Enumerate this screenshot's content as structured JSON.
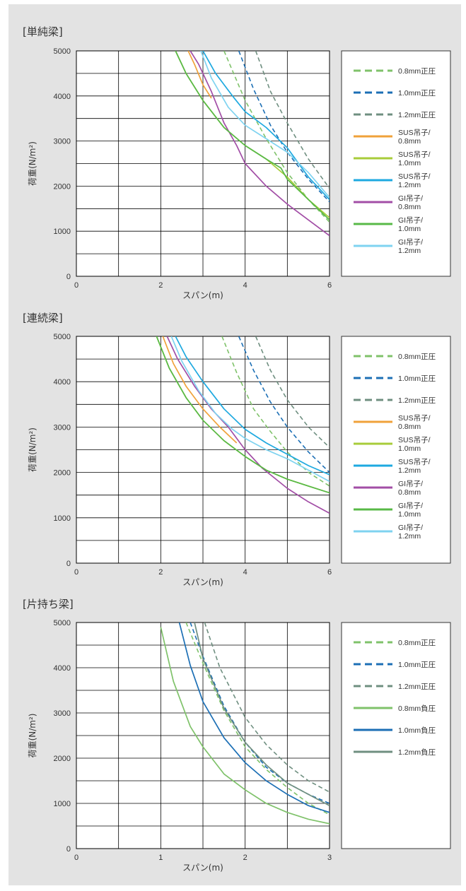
{
  "chart_data": [
    {
      "type": "line",
      "title": "[単純梁]",
      "xlabel": "スパン(m)",
      "ylabel": "荷重(N/m²)",
      "xlim": [
        0,
        6
      ],
      "ylim": [
        0,
        5000
      ],
      "xticks": [
        0,
        2,
        4,
        6
      ],
      "yticks": [
        0,
        1000,
        2000,
        3000,
        4000,
        5000
      ],
      "x_grid_step": 1,
      "y_grid_step": 500,
      "legend_position": "right",
      "series": [
        {
          "name": "0.8mm正圧",
          "color": "#7fc26a",
          "dash": true,
          "x": [
            3.5,
            4.0,
            4.5,
            5.0,
            5.5,
            6.0
          ],
          "y": [
            5000,
            3900,
            3050,
            2300,
            1700,
            1200
          ]
        },
        {
          "name": "1.0mm正圧",
          "color": "#1c6fb5",
          "dash": true,
          "x": [
            3.85,
            4.2,
            4.6,
            5.0,
            5.5,
            6.0
          ],
          "y": [
            5000,
            4150,
            3350,
            2750,
            2150,
            1650
          ]
        },
        {
          "name": "1.2mm正圧",
          "color": "#6f8f80",
          "dash": true,
          "x": [
            4.25,
            4.6,
            5.0,
            5.5,
            6.0
          ],
          "y": [
            5000,
            4100,
            3400,
            2600,
            1950
          ]
        },
        {
          "name": "SUS吊子/0.8mm",
          "color": "#f0a23a",
          "dash": false,
          "x": [
            2.65,
            2.8,
            3.0,
            3.2
          ],
          "y": [
            5000,
            4700,
            4250,
            3950
          ]
        },
        {
          "name": "SUS吊子/1.0mm",
          "color": "#a8cc3a",
          "dash": false,
          "x": [
            2.35,
            2.6,
            3.0,
            3.5,
            4.0,
            4.5,
            5.0,
            5.5,
            6.0
          ],
          "y": [
            5000,
            4500,
            3900,
            3300,
            2900,
            2600,
            2200,
            1700,
            1300
          ]
        },
        {
          "name": "SUS吊子/1.2mm",
          "color": "#1ea9e0",
          "dash": false,
          "x": [
            3.0,
            3.3,
            3.7,
            4.0,
            4.5,
            5.0,
            5.5,
            6.0
          ],
          "y": [
            5000,
            4500,
            4000,
            3650,
            3300,
            2850,
            2200,
            1700
          ]
        },
        {
          "name": "GI吊子/0.8mm",
          "color": "#a24ea6",
          "dash": false,
          "x": [
            2.7,
            2.9,
            3.2,
            3.5,
            3.8,
            4.0,
            4.5,
            5.0,
            5.5,
            6.0
          ],
          "y": [
            5000,
            4700,
            4100,
            3400,
            2900,
            2500,
            2000,
            1600,
            1250,
            900
          ]
        },
        {
          "name": "GI吊子/1.0mm",
          "color": "#58b947",
          "dash": false,
          "x": [
            2.35,
            2.6,
            3.0,
            3.5,
            4.0,
            4.5,
            4.85,
            5.0,
            5.5,
            6.0
          ],
          "y": [
            5000,
            4500,
            3900,
            3300,
            2900,
            2600,
            2400,
            2150,
            1700,
            1250
          ]
        },
        {
          "name": "GI吊子/1.2mm",
          "color": "#7fd3f0",
          "dash": false,
          "x": [
            2.95,
            3.2,
            3.6,
            4.0,
            4.5,
            5.0,
            5.5,
            6.0
          ],
          "y": [
            5000,
            4400,
            3750,
            3350,
            3050,
            2750,
            2300,
            1750
          ]
        }
      ]
    },
    {
      "type": "line",
      "title": "[連続梁]",
      "xlabel": "スパン(m)",
      "ylabel": "荷重(N/m²)",
      "xlim": [
        0,
        6
      ],
      "ylim": [
        0,
        5000
      ],
      "xticks": [
        0,
        2,
        4,
        6
      ],
      "yticks": [
        0,
        1000,
        2000,
        3000,
        4000,
        5000
      ],
      "x_grid_step": 1,
      "y_grid_step": 500,
      "legend_position": "right",
      "series": [
        {
          "name": "0.8mm正圧",
          "color": "#7fc26a",
          "dash": true,
          "x": [
            3.45,
            3.8,
            4.2,
            4.6,
            5.0,
            5.5,
            6.0
          ],
          "y": [
            5000,
            4200,
            3400,
            2900,
            2450,
            2000,
            1700
          ]
        },
        {
          "name": "1.0mm正圧",
          "color": "#1c6fb5",
          "dash": true,
          "x": [
            3.85,
            4.2,
            4.6,
            5.0,
            5.5,
            6.0
          ],
          "y": [
            5000,
            4250,
            3550,
            3000,
            2450,
            2000
          ]
        },
        {
          "name": "1.2mm正圧",
          "color": "#6f8f80",
          "dash": true,
          "x": [
            4.25,
            4.6,
            5.0,
            5.5,
            6.0
          ],
          "y": [
            5000,
            4250,
            3600,
            3000,
            2550
          ]
        },
        {
          "name": "SUS吊子/0.8mm",
          "color": "#f0a23a",
          "dash": false,
          "x": [
            2.05,
            2.3,
            2.6,
            3.0,
            3.4,
            3.8
          ],
          "y": [
            5000,
            4400,
            3900,
            3400,
            3000,
            2650
          ]
        },
        {
          "name": "SUS吊子/1.0mm",
          "color": "#a8cc3a",
          "dash": false,
          "x": [
            1.9,
            2.2,
            2.6,
            3.0,
            3.5,
            4.0,
            4.5,
            5.0,
            5.5,
            6.0
          ],
          "y": [
            5000,
            4300,
            3650,
            3150,
            2700,
            2350,
            2050,
            1850,
            1700,
            1550
          ]
        },
        {
          "name": "SUS吊子/1.2mm",
          "color": "#1ea9e0",
          "dash": false,
          "x": [
            2.35,
            2.6,
            3.0,
            3.5,
            4.0,
            4.5,
            5.0,
            5.5,
            6.0
          ],
          "y": [
            5000,
            4550,
            4000,
            3400,
            2950,
            2650,
            2400,
            2150,
            1950
          ]
        },
        {
          "name": "GI吊子/0.8mm",
          "color": "#a24ea6",
          "dash": false,
          "x": [
            2.15,
            2.4,
            2.8,
            3.2,
            3.6,
            4.0,
            4.4,
            5.0,
            5.5,
            6.0
          ],
          "y": [
            5000,
            4500,
            3900,
            3400,
            3000,
            2500,
            2100,
            1650,
            1350,
            1100
          ]
        },
        {
          "name": "GI吊子/1.0mm",
          "color": "#58b947",
          "dash": false,
          "x": [
            1.9,
            2.2,
            2.6,
            3.0,
            3.5,
            4.0,
            4.5,
            5.0,
            5.5,
            6.0
          ],
          "y": [
            5000,
            4300,
            3650,
            3150,
            2700,
            2350,
            2050,
            1850,
            1700,
            1550
          ]
        },
        {
          "name": "GI吊子/1.2mm",
          "color": "#7fd3f0",
          "dash": false,
          "x": [
            2.25,
            2.5,
            2.9,
            3.3,
            3.7,
            4.0,
            4.5,
            5.0,
            5.5,
            6.0
          ],
          "y": [
            5000,
            4450,
            3800,
            3300,
            2950,
            2750,
            2500,
            2300,
            2050,
            1800
          ]
        }
      ]
    },
    {
      "type": "line",
      "title": "[片持ち梁]",
      "xlabel": "スパン(m)",
      "ylabel": "荷重(N/m²)",
      "xlim": [
        0,
        3
      ],
      "ylim": [
        0,
        5000
      ],
      "xticks": [
        0,
        1,
        2,
        3
      ],
      "yticks": [
        0,
        1000,
        2000,
        3000,
        4000,
        5000
      ],
      "x_grid_step": 0.5,
      "y_grid_step": 500,
      "legend_position": "right",
      "series": [
        {
          "name": "0.8mm正圧",
          "color": "#7fc26a",
          "dash": true,
          "x": [
            1.3,
            1.5,
            1.75,
            2.0,
            2.25,
            2.5,
            2.75,
            3.0
          ],
          "y": [
            5000,
            4100,
            3050,
            2250,
            1750,
            1350,
            1000,
            750
          ]
        },
        {
          "name": "1.0mm正圧",
          "color": "#1c6fb5",
          "dash": true,
          "x": [
            1.35,
            1.5,
            1.75,
            2.0,
            2.25,
            2.5,
            2.75,
            3.0
          ],
          "y": [
            5000,
            4250,
            3150,
            2350,
            1800,
            1450,
            1200,
            1000
          ]
        },
        {
          "name": "1.2mm正圧",
          "color": "#6f8f80",
          "dash": true,
          "x": [
            1.52,
            1.7,
            2.0,
            2.25,
            2.5,
            2.75,
            3.0
          ],
          "y": [
            5000,
            4000,
            2900,
            2300,
            1850,
            1500,
            1250
          ]
        },
        {
          "name": "0.8mm負圧",
          "color": "#7fc26a",
          "dash": false,
          "x": [
            1.0,
            1.15,
            1.35,
            1.5,
            1.75,
            2.0,
            2.25,
            2.5,
            2.75,
            3.0
          ],
          "y": [
            4900,
            3700,
            2700,
            2250,
            1650,
            1300,
            1000,
            800,
            650,
            550
          ]
        },
        {
          "name": "1.0mm負圧",
          "color": "#1c6fb5",
          "dash": false,
          "x": [
            1.22,
            1.35,
            1.5,
            1.75,
            2.0,
            2.25,
            2.5,
            2.75,
            3.0
          ],
          "y": [
            5000,
            4050,
            3250,
            2450,
            1900,
            1500,
            1200,
            950,
            800
          ]
        },
        {
          "name": "1.2mm負圧",
          "color": "#6f8f80",
          "dash": false,
          "x": [
            1.4,
            1.5,
            1.75,
            2.0,
            2.25,
            2.5,
            2.75,
            3.0
          ],
          "y": [
            5000,
            4200,
            3100,
            2350,
            1850,
            1450,
            1200,
            950
          ]
        }
      ]
    }
  ]
}
